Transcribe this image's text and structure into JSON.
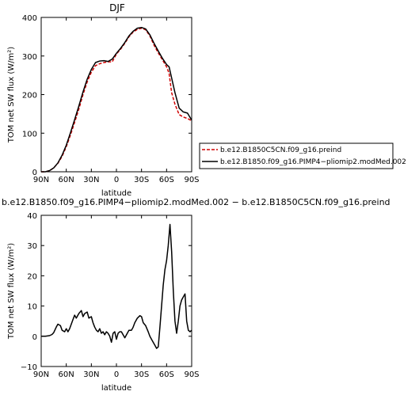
{
  "chart_data": [
    {
      "type": "line",
      "title": "DJF",
      "xlabel": "latitude",
      "ylabel": "TOM net SW flux (W/m²)",
      "xlim": [
        -90,
        90
      ],
      "ylim": [
        0,
        400
      ],
      "x_ticks": [
        -90,
        -60,
        -30,
        0,
        30,
        60,
        90
      ],
      "x_tick_labels": [
        "90N",
        "60N",
        "30N",
        "0",
        "30S",
        "60S",
        "90S"
      ],
      "y_ticks": [
        0,
        100,
        200,
        300,
        400
      ],
      "y_tick_labels": [
        "0",
        "100",
        "200",
        "300",
        "400"
      ],
      "legend_position": "right",
      "series": [
        {
          "name": "b.e12.B1850C5CN.f09_g16.preind",
          "color": "#d00000",
          "style": "dashed",
          "x": [
            -90,
            -85,
            -80,
            -75,
            -70,
            -65,
            -60,
            -55,
            -50,
            -45,
            -40,
            -35,
            -30,
            -25,
            -20,
            -15,
            -10,
            -5,
            0,
            5,
            10,
            15,
            20,
            25,
            30,
            35,
            40,
            45,
            50,
            55,
            60,
            63,
            66,
            70,
            75,
            80,
            85,
            90
          ],
          "y": [
            0,
            0,
            3,
            10,
            22,
            40,
            65,
            95,
            128,
            162,
            200,
            233,
            258,
            275,
            280,
            283,
            285,
            285,
            305,
            318,
            333,
            350,
            362,
            369,
            372,
            368,
            352,
            328,
            308,
            290,
            272,
            255,
            205,
            175,
            148,
            142,
            138,
            132
          ]
        },
        {
          "name": "b.e12.B1850.f09_g16.PIMP4−pliomip2.modMed.002",
          "color": "#000000",
          "style": "solid",
          "x": [
            -90,
            -85,
            -80,
            -75,
            -70,
            -65,
            -60,
            -55,
            -50,
            -45,
            -40,
            -35,
            -30,
            -25,
            -20,
            -15,
            -10,
            -5,
            0,
            5,
            10,
            15,
            20,
            25,
            30,
            35,
            40,
            45,
            50,
            55,
            60,
            63,
            66,
            70,
            75,
            80,
            85,
            90
          ],
          "y": [
            0,
            0,
            3,
            10,
            23,
            43,
            69,
            101,
            135,
            170,
            207,
            240,
            265,
            283,
            287,
            288,
            286,
            292,
            307,
            320,
            335,
            352,
            364,
            372,
            374,
            370,
            355,
            333,
            313,
            294,
            278,
            272,
            243,
            205,
            165,
            155,
            152,
            134
          ]
        }
      ]
    },
    {
      "type": "line",
      "title": "b.e12.B1850.f09_g16.PIMP4−pliomip2.modMed.002 − b.e12.B1850C5CN.f09_g16.preind",
      "xlabel": "latitude",
      "ylabel": "TOM net SW flux (W/m²)",
      "xlim": [
        -90,
        90
      ],
      "ylim": [
        -10,
        40
      ],
      "x_ticks": [
        -90,
        -60,
        -30,
        0,
        30,
        60,
        90
      ],
      "x_tick_labels": [
        "90N",
        "60N",
        "30N",
        "0",
        "30S",
        "60S",
        "90S"
      ],
      "y_ticks": [
        -10,
        0,
        10,
        20,
        30,
        40
      ],
      "y_tick_labels": [
        "−10",
        "0",
        "10",
        "20",
        "30",
        "40"
      ],
      "series": [
        {
          "color": "#000000",
          "style": "solid",
          "x": [
            -90,
            -85,
            -80,
            -77,
            -75,
            -72,
            -70,
            -67,
            -65,
            -62,
            -60,
            -58,
            -56,
            -54,
            -52,
            -50,
            -48,
            -45,
            -42,
            -40,
            -38,
            -35,
            -33,
            -30,
            -28,
            -26,
            -24,
            -22,
            -20,
            -18,
            -16,
            -14,
            -12,
            -10,
            -8,
            -6,
            -4,
            -2,
            0,
            2,
            4,
            6,
            8,
            10,
            12,
            15,
            18,
            20,
            22,
            25,
            28,
            30,
            32,
            35,
            38,
            40,
            42,
            44,
            46,
            48,
            50,
            52,
            54,
            56,
            58,
            60,
            62,
            64,
            66,
            68,
            70,
            72,
            74,
            76,
            78,
            80,
            82,
            84,
            86,
            88,
            90
          ],
          "y": [
            0,
            0,
            0.2,
            0.6,
            1.2,
            3,
            4,
            3.5,
            2,
            1.5,
            2.5,
            1.5,
            2.5,
            4,
            5.5,
            7,
            6,
            7.5,
            8.5,
            6.5,
            7.5,
            8,
            6,
            6.5,
            4.5,
            3,
            2,
            1.5,
            2.5,
            1,
            1.5,
            0.5,
            1.5,
            1,
            0,
            -2,
            1,
            1.5,
            -1,
            1,
            1.5,
            1.5,
            0.5,
            -0.5,
            0.5,
            2,
            2,
            3,
            4.5,
            6,
            6.8,
            6.5,
            4.5,
            3.5,
            1.5,
            0,
            -1,
            -2,
            -3,
            -4,
            -3.5,
            3,
            10,
            17,
            22,
            25,
            30,
            37,
            28,
            15,
            5,
            1,
            5,
            10,
            12,
            13,
            14,
            5,
            2,
            1.5,
            2
          ]
        }
      ]
    }
  ],
  "legend": {
    "entries": [
      "b.e12.B1850C5CN.f09_g16.preind",
      "b.e12.B1850.f09_g16.PIMP4−pliomip2.modMed.002"
    ]
  }
}
